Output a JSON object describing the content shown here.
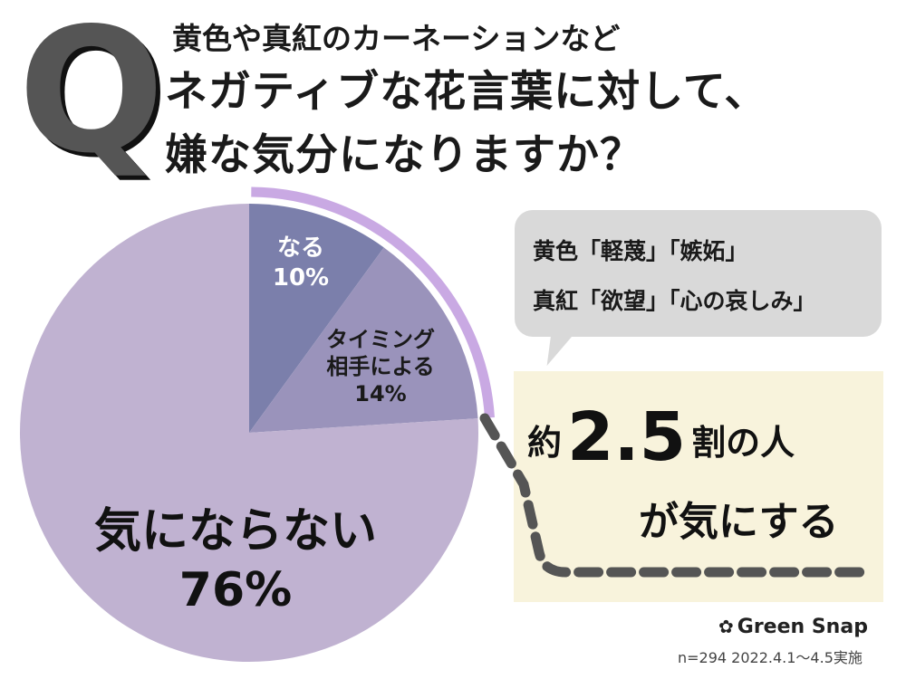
{
  "header": {
    "q_letter": "Q",
    "subtitle": "黄色や真紅のカーネーションなど",
    "title_line1": "ネガティブな花言葉に対して、",
    "title_line2": "嫌な気分になりますか？"
  },
  "chart_data": {
    "type": "pie",
    "title": "ネガティブな花言葉に対して、嫌な気分になりますか？",
    "slices": [
      {
        "label": "なる",
        "value": 10,
        "value_label": "10%",
        "color": "#7b7fab"
      },
      {
        "label": "タイミング相手による",
        "value": 14,
        "value_label": "14%",
        "color": "#9a93bb"
      },
      {
        "label": "気にならない",
        "value": 76,
        "value_label": "76%",
        "color": "#c0b2d1"
      }
    ],
    "highlight_arc_color": "#c9a9e3",
    "labels": {
      "naru": [
        "なる",
        "10%"
      ],
      "timing": [
        "タイミング",
        "相手による",
        "14%"
      ],
      "kinisanai": [
        "気にならない",
        "76%"
      ]
    }
  },
  "bubble": {
    "line1": "黄色「軽蔑」「嫉妬」",
    "line2": "真紅「欲望」「心の哀しみ」"
  },
  "callout": {
    "prefix": "約",
    "number": "2.5",
    "suffix": "割の人",
    "line2": "が気にする",
    "box_color": "#f8f3dc"
  },
  "footer": {
    "logo_icon": "clover-icon",
    "logo_text": "Green Snap",
    "note": "n=294  2022.4.1〜4.5実施"
  }
}
